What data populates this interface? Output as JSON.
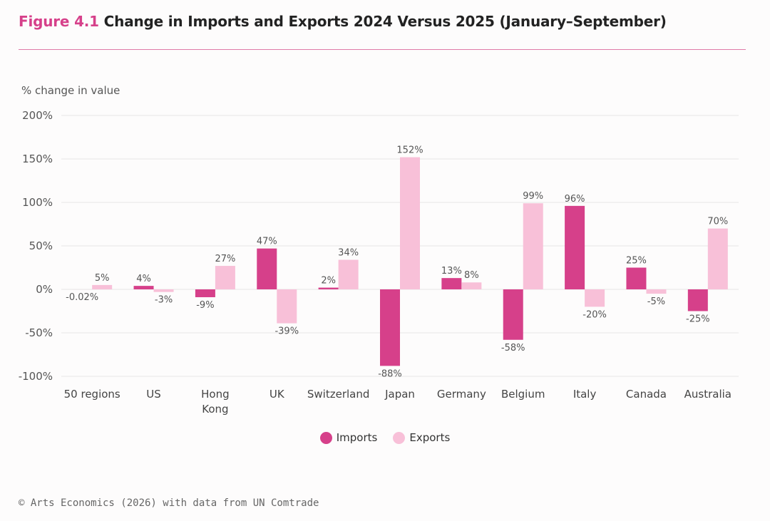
{
  "title": {
    "figure_label": "Figure 4.1",
    "text": "Change in Imports and Exports 2024 Versus 2025 (January–September)"
  },
  "source": "© Arts Economics (2026) with data from UN Comtrade",
  "colors": {
    "imports": "#d6408a",
    "exports": "#f8c0d8",
    "accent": "#d6408a"
  },
  "chart_data": {
    "type": "bar",
    "ylabel": "% change in value",
    "ylim": [
      -100,
      200
    ],
    "yticks": [
      -100,
      -50,
      0,
      50,
      100,
      150,
      200
    ],
    "ytick_labels": [
      "-100%",
      "-50%",
      "0%",
      "50%",
      "100%",
      "150%",
      "200%"
    ],
    "grid": true,
    "legend_position": "bottom-center",
    "categories": [
      "50 regions",
      "US",
      "Hong Kong",
      "UK",
      "Switzerland",
      "Japan",
      "Germany",
      "Belgium",
      "Italy",
      "Canada",
      "Australia"
    ],
    "series": [
      {
        "name": "Imports",
        "values": [
          -0.02,
          4,
          -9,
          47,
          2,
          -88,
          13,
          -58,
          96,
          25,
          -25
        ],
        "labels": [
          "-0.02%",
          "4%",
          "-9%",
          "47%",
          "2%",
          "-88%",
          "13%",
          "-58%",
          "96%",
          "25%",
          "-25%"
        ]
      },
      {
        "name": "Exports",
        "values": [
          5,
          -3,
          27,
          -39,
          34,
          152,
          8,
          99,
          -20,
          -5,
          70
        ],
        "labels": [
          "5%",
          "-3%",
          "27%",
          "-39%",
          "34%",
          "152%",
          "8%",
          "99%",
          "-20%",
          "-5%",
          "70%"
        ]
      }
    ]
  }
}
